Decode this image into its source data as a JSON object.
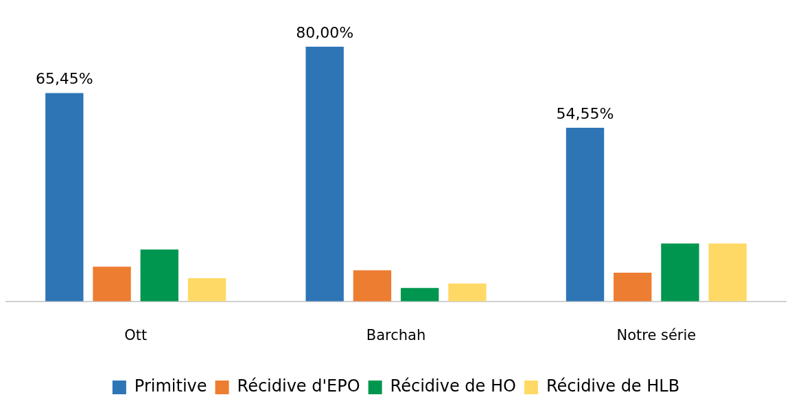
{
  "chart_data": {
    "type": "bar",
    "categories": [
      "Ott",
      "Barchah",
      "Notre série"
    ],
    "series": [
      {
        "name": "Primitive",
        "color": "#2e75b6",
        "values": [
          65.45,
          80.0,
          54.55
        ],
        "value_labels": [
          "65,45%",
          "80,00%",
          "54,55%"
        ]
      },
      {
        "name": "Récidive d'EPO",
        "color": "#ed7d31",
        "values": [
          10.9,
          9.8,
          9.0
        ]
      },
      {
        "name": "Récidive de HO",
        "color": "#00964f",
        "values": [
          16.3,
          4.2,
          18.2
        ]
      },
      {
        "name": "Récidive de HLB",
        "color": "#ffd966",
        "values": [
          7.3,
          5.6,
          18.2
        ]
      }
    ],
    "grid": false,
    "legend": "bottom"
  }
}
